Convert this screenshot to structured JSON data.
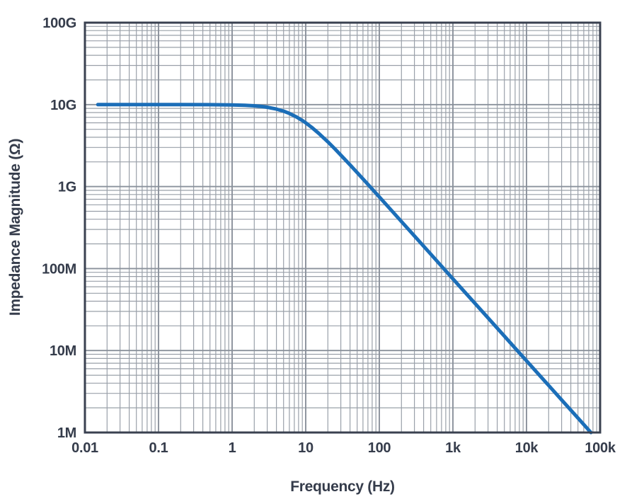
{
  "figure": {
    "background": "#ffffff"
  },
  "colors": {
    "curve": "#1b6eb8",
    "grid_minor": "#9aa0a9",
    "grid_major": "#8a919b",
    "axis_frame": "#3a4150",
    "text": "#353c4b"
  },
  "chart_data": {
    "type": "line",
    "title": "",
    "xlabel": "Frequency (Hz)",
    "ylabel": "Impedance Magnitude (Ω)",
    "x_axis": {
      "scale": "log",
      "min": 0.01,
      "max": 100000,
      "tick_values": [
        0.01,
        0.1,
        1,
        10,
        100,
        1000,
        10000,
        100000
      ],
      "tick_labels": [
        "0.01",
        "0.1",
        "1",
        "10",
        "100",
        "1k",
        "10k",
        "100k"
      ]
    },
    "y_axis": {
      "scale": "log",
      "min": 1000000,
      "max": 100000000000,
      "tick_values": [
        1000000,
        10000000,
        100000000,
        1000000000,
        10000000000,
        100000000000
      ],
      "tick_labels": [
        "1M",
        "10M",
        "100M",
        "1G",
        "10G",
        "100G"
      ]
    },
    "grid": {
      "major": true,
      "minor": true,
      "minor_steps": [
        2,
        3,
        4,
        5,
        6,
        7,
        8,
        9
      ]
    },
    "legend": "none",
    "series": [
      {
        "name": "impedance-magnitude",
        "color": "#1b6eb8",
        "points": [
          [
            0.015,
            10000000000.0
          ],
          [
            0.05,
            10000000000.0
          ],
          [
            0.2,
            9996000000.0
          ],
          [
            0.5,
            9978000000.0
          ],
          [
            1,
            9912000000.0
          ],
          [
            1.5,
            9806000000.0
          ],
          [
            2,
            9662000000.0
          ],
          [
            2.5,
            9487000000.0
          ],
          [
            3,
            9285000000.0
          ],
          [
            4,
            8824000000.0
          ],
          [
            5,
            8321000000.0
          ],
          [
            6,
            7809000000.0
          ],
          [
            7.5,
            7071000000.0
          ],
          [
            9,
            6402000000.0
          ],
          [
            10,
            6000000000.0
          ],
          [
            12,
            5300000000.0
          ],
          [
            15,
            4472000000.0
          ],
          [
            20,
            3511000000.0
          ],
          [
            25,
            2874000000.0
          ],
          [
            30,
            2425000000.0
          ],
          [
            40,
            1843000000.0
          ],
          [
            50,
            1483000000.0
          ],
          [
            70,
            1065000000.0
          ],
          [
            100,
            747900000.0
          ],
          [
            150,
            499400000.0
          ],
          [
            200,
            374700000.0
          ],
          [
            300,
            249900000.0
          ],
          [
            500,
            150000000.0
          ],
          [
            700,
            107100000.0
          ],
          [
            1000,
            75000000.0
          ],
          [
            1500,
            50000000.0
          ],
          [
            2000,
            37500000.0
          ],
          [
            3000,
            25000000.0
          ],
          [
            5000,
            15000000.0
          ],
          [
            7000,
            10710000.0
          ],
          [
            10000,
            7500000.0
          ],
          [
            15000,
            5000000.0
          ],
          [
            20000,
            3750000.0
          ],
          [
            30000,
            2500000.0
          ],
          [
            50000,
            1500000.0
          ],
          [
            75000,
            1000000.0
          ]
        ]
      }
    ]
  }
}
